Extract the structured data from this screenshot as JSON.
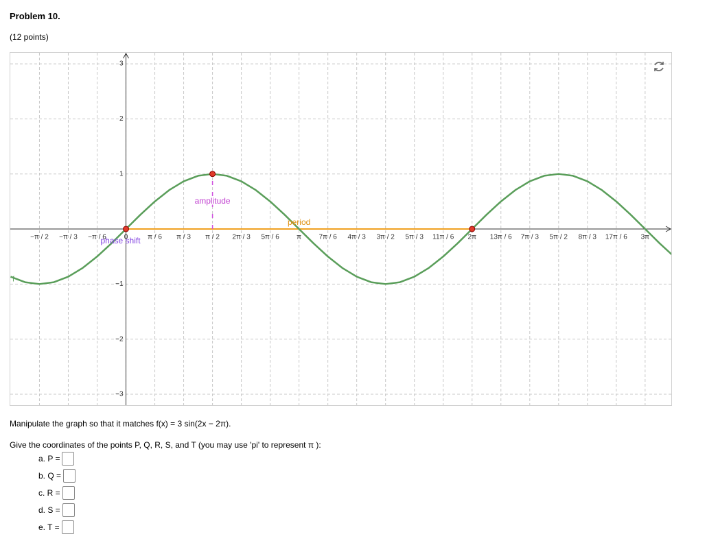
{
  "header": {
    "title": "Problem 10.",
    "points": "(12 points)"
  },
  "chart_data": {
    "type": "line",
    "x": [
      -2.0944,
      -1.8326,
      -1.5708,
      -1.309,
      -1.0472,
      -0.7854,
      -0.5236,
      -0.2618,
      0,
      0.2618,
      0.5236,
      0.7854,
      1.0472,
      1.309,
      1.5708,
      1.8326,
      2.0944,
      2.3562,
      2.618,
      2.8798,
      3.1416,
      3.4034,
      3.6652,
      3.927,
      4.1888,
      4.4506,
      4.7124,
      4.9742,
      5.236,
      5.4978,
      5.7596,
      6.0214,
      6.2832,
      6.545,
      6.8068,
      7.0686,
      7.3304,
      7.5922,
      7.854,
      8.1158,
      8.3776,
      8.6394,
      8.9012,
      9.163,
      9.4248,
      9.6866,
      9.9484
    ],
    "series": [
      {
        "name": "f",
        "color": "#5a9e5a",
        "values": [
          -0.866,
          -0.966,
          -1,
          -0.966,
          -0.866,
          -0.707,
          -0.5,
          -0.259,
          0,
          0.259,
          0.5,
          0.707,
          0.866,
          0.966,
          1,
          0.966,
          0.866,
          0.707,
          0.5,
          0.259,
          0,
          -0.259,
          -0.5,
          -0.707,
          -0.866,
          -0.966,
          -1,
          -0.966,
          -0.866,
          -0.707,
          -0.5,
          -0.259,
          0,
          0.259,
          0.5,
          0.707,
          0.866,
          0.966,
          1,
          0.966,
          0.866,
          0.707,
          0.5,
          0.259,
          0,
          -0.259,
          -0.5
        ]
      }
    ],
    "xlim": [
      -2.1,
      9.9
    ],
    "ylim": [
      -3.2,
      3.2
    ],
    "xticks": [
      {
        "value": -1.5708,
        "label": "−π / 2"
      },
      {
        "value": -1.0472,
        "label": "−π / 3"
      },
      {
        "value": -0.5236,
        "label": "−π / 6"
      },
      0,
      {
        "value": 0.5236,
        "label": "π / 6"
      },
      {
        "value": 1.0472,
        "label": "π / 3"
      },
      {
        "value": 1.5708,
        "label": "π / 2"
      },
      {
        "value": 2.0944,
        "label": "2π / 3"
      },
      {
        "value": 2.618,
        "label": "5π / 6"
      },
      {
        "value": 3.1416,
        "label": "π"
      },
      {
        "value": 3.6652,
        "label": "7π / 6"
      },
      {
        "value": 4.1888,
        "label": "4π / 3"
      },
      {
        "value": 4.7124,
        "label": "3π / 2"
      },
      {
        "value": 5.236,
        "label": "5π / 3"
      },
      {
        "value": 5.7596,
        "label": "11π / 6"
      },
      {
        "value": 6.2832,
        "label": "2π"
      },
      {
        "value": 6.8068,
        "label": "13π / 6"
      },
      {
        "value": 7.3304,
        "label": "7π / 3"
      },
      {
        "value": 7.854,
        "label": "5π / 2"
      },
      {
        "value": 8.3776,
        "label": "8π / 3"
      },
      {
        "value": 8.9012,
        "label": "17π / 6"
      },
      {
        "value": 9.4248,
        "label": "3π"
      }
    ],
    "yticks": [
      {
        "value": -3,
        "label": "−3"
      },
      {
        "value": -2,
        "label": "−2"
      },
      {
        "value": -1,
        "label": "−1"
      },
      1,
      2,
      3
    ],
    "grid": true,
    "points": [
      {
        "x": 0,
        "y": 0
      },
      {
        "x": 1.5708,
        "y": 1
      },
      {
        "x": 6.2832,
        "y": 0
      }
    ],
    "point_color": "#e03a2a",
    "annotations": {
      "amplitude": "amplitude",
      "period": "period",
      "phase_shift": "phase shift"
    }
  },
  "question": {
    "instruction": "Manipulate the graph so that it matches f(x) = 3 sin(2x − 2π).",
    "prompt": "Give the coordinates of the points P, Q, R, S, and T (you may use 'pi' to represent π ):",
    "answers": [
      "a. P =",
      "b. Q =",
      "c. R =",
      "d. S =",
      "e. T ="
    ]
  }
}
